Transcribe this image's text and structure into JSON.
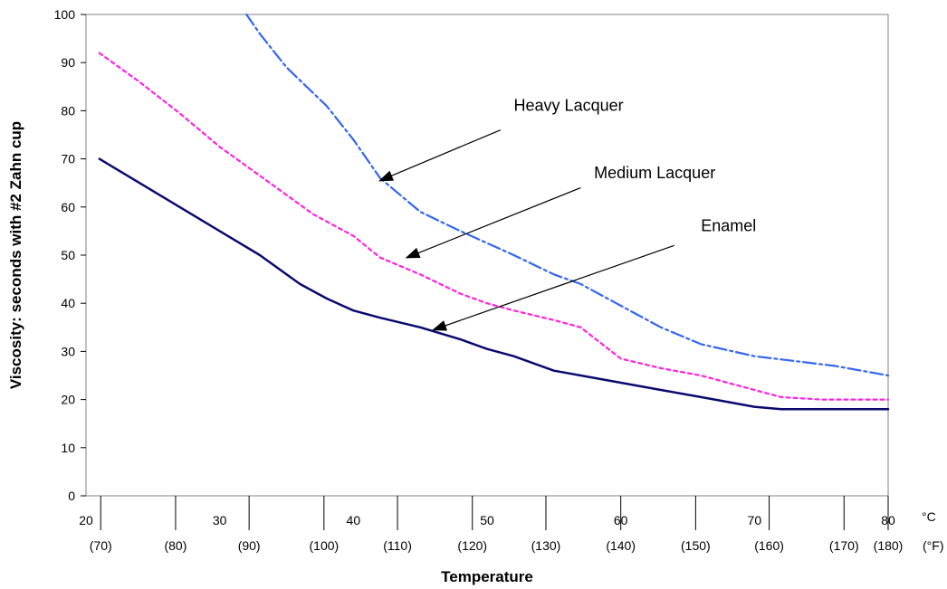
{
  "chart_data": {
    "type": "line",
    "xlabel": "Temperature",
    "ylabel": "Viscosity: seconds with #2 Zahn cup",
    "xlim": [
      20,
      80
    ],
    "ylim": [
      0,
      100
    ],
    "y_ticks": [
      0,
      10,
      20,
      30,
      40,
      50,
      60,
      70,
      80,
      90,
      100
    ],
    "x_unit_c": "°C",
    "x_unit_f": "(°F)",
    "celsius_labels": [
      {
        "x": 20,
        "label": "20"
      },
      {
        "x": 30,
        "label": "30"
      },
      {
        "x": 40,
        "label": "40"
      },
      {
        "x": 50,
        "label": "50"
      },
      {
        "x": 60,
        "label": "60"
      },
      {
        "x": 70,
        "label": "70"
      },
      {
        "x": 80,
        "label": "80"
      }
    ],
    "fahrenheit_labels": [
      {
        "x": 21.1,
        "label": "(70)"
      },
      {
        "x": 26.7,
        "label": "(80)"
      },
      {
        "x": 32.2,
        "label": "(90)"
      },
      {
        "x": 37.8,
        "label": "(100)"
      },
      {
        "x": 43.3,
        "label": "(110)"
      },
      {
        "x": 48.9,
        "label": "(120)"
      },
      {
        "x": 54.4,
        "label": "(130)"
      },
      {
        "x": 60.0,
        "label": "(140)"
      },
      {
        "x": 65.6,
        "label": "(150)"
      },
      {
        "x": 71.1,
        "label": "(160)"
      },
      {
        "x": 76.7,
        "label": "(170)"
      },
      {
        "x": 80.0,
        "label": "(180)"
      }
    ],
    "grid": false,
    "legend": "none",
    "series": [
      {
        "key": "heavy",
        "color": "#3366ee",
        "dash": "dashdot",
        "x": [
          32,
          33,
          35,
          38,
          40,
          42,
          45,
          48,
          50,
          52,
          55,
          57,
          60,
          63,
          66,
          70,
          73,
          76,
          80
        ],
        "y": [
          100,
          96,
          89,
          81,
          74,
          66,
          59,
          55,
          52.5,
          50,
          46,
          44,
          39.5,
          35,
          31.5,
          29,
          28,
          27,
          25
        ]
      },
      {
        "key": "medium",
        "color": "#ff22dd",
        "dash": "dot",
        "x": [
          21,
          24,
          27,
          30,
          33,
          37,
          40,
          42,
          45,
          48,
          50,
          52,
          55,
          57,
          60,
          63,
          66,
          70,
          72,
          75,
          80
        ],
        "y": [
          92,
          86,
          79.5,
          72.5,
          66.5,
          58.5,
          54,
          49.5,
          46,
          42,
          40,
          38.5,
          36.5,
          35,
          28.5,
          26.5,
          25,
          22,
          20.5,
          20,
          20
        ]
      },
      {
        "key": "enamel",
        "color": "#0a0a6e",
        "dash": "solid",
        "x": [
          21,
          24,
          27,
          30,
          33,
          36,
          38,
          40,
          42,
          45,
          48,
          50,
          52,
          55,
          57,
          60,
          63,
          66,
          70,
          72,
          75,
          80
        ],
        "y": [
          70,
          65,
          60,
          55,
          50,
          44,
          41,
          38.5,
          37,
          35,
          32.5,
          30.5,
          29,
          26,
          25,
          23.5,
          22,
          20.5,
          18.5,
          18,
          18,
          18
        ]
      }
    ],
    "annotations": [
      {
        "text": "Heavy Lacquer",
        "text_at": [
          52,
          80
        ],
        "arrow_from": [
          51,
          76
        ],
        "arrow_to": [
          42,
          65.5
        ]
      },
      {
        "text": "Medium Lacquer",
        "text_at": [
          58,
          66
        ],
        "arrow_from": [
          57,
          64
        ],
        "arrow_to": [
          44,
          49.5
        ]
      },
      {
        "text": "Enamel",
        "text_at": [
          66,
          55
        ],
        "arrow_from": [
          64,
          52
        ],
        "arrow_to": [
          46,
          34.5
        ]
      }
    ]
  }
}
